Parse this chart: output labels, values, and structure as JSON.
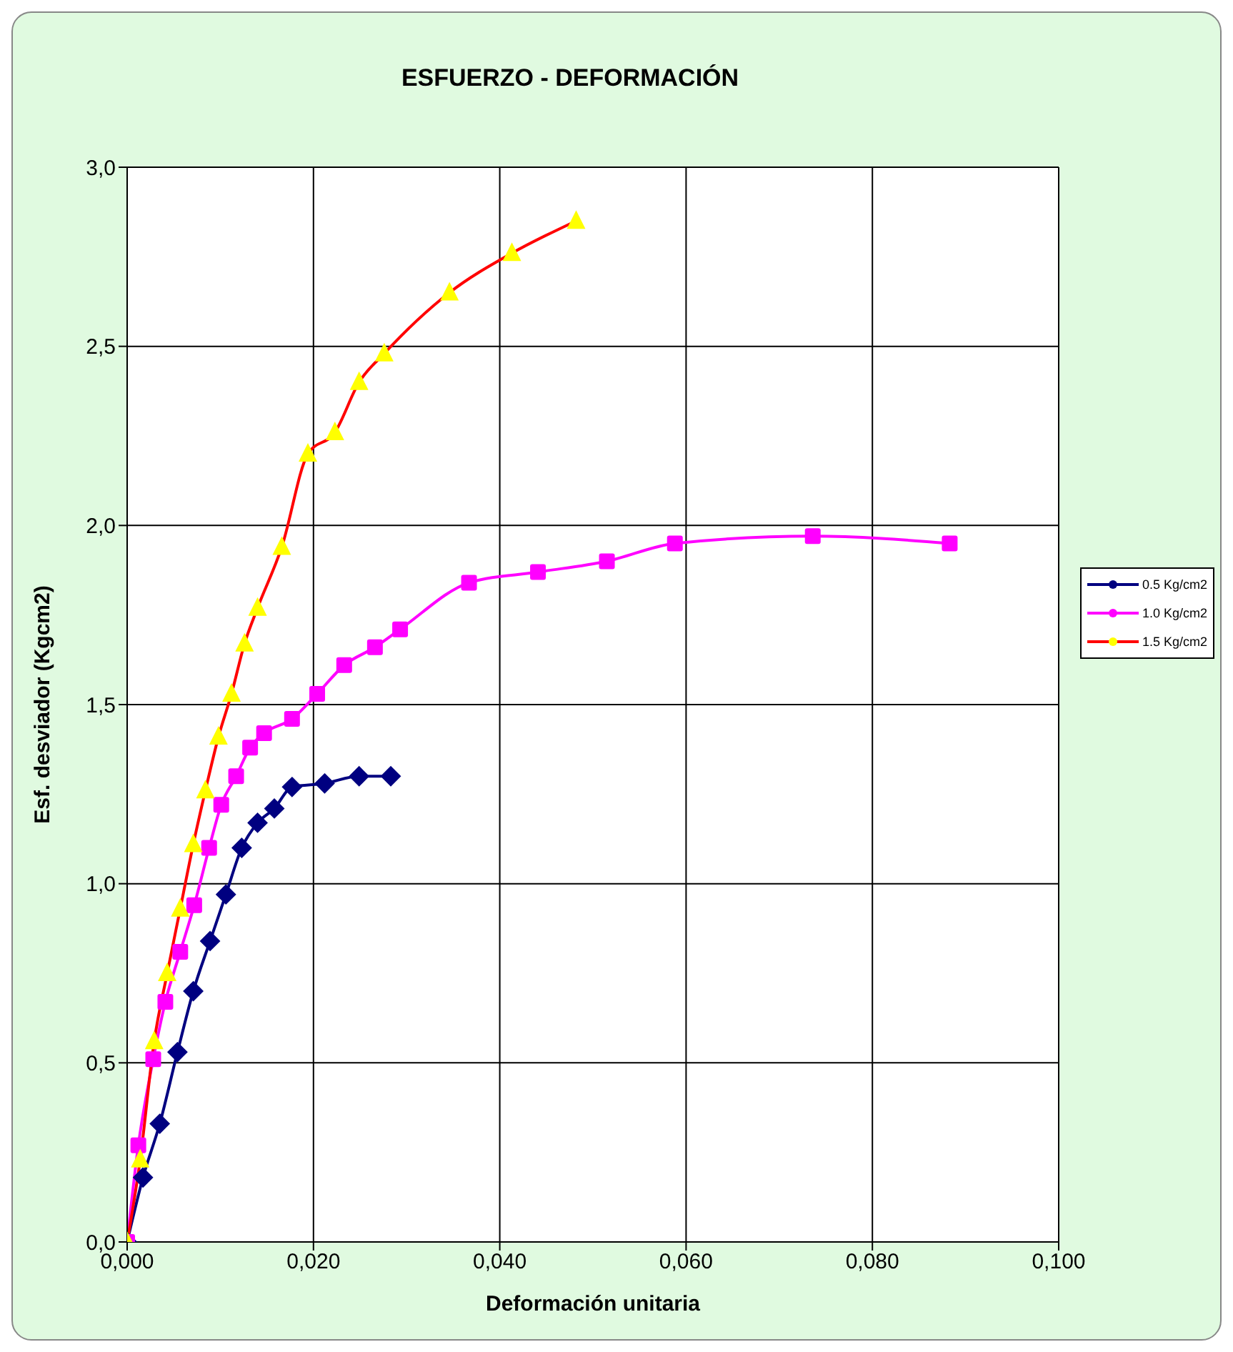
{
  "chart_data": {
    "type": "line",
    "title": "ESFUERZO - DEFORMACIÓN",
    "xlabel": "Deformación unitaria",
    "ylabel": "Esf. desviador (Kgcm2)",
    "xlim": [
      0,
      0.1
    ],
    "xticks": [
      {
        "value": 0,
        "label": "0,000"
      },
      {
        "value": 0.02,
        "label": "0,020"
      },
      {
        "value": 0.04,
        "label": "0,040"
      },
      {
        "value": 0.06,
        "label": "0,060"
      },
      {
        "value": 0.08,
        "label": "0,080"
      },
      {
        "value": 0.1,
        "label": "0,100"
      }
    ],
    "ylim": [
      0,
      3
    ],
    "yticks": [
      {
        "value": 0,
        "label": "0,0"
      },
      {
        "value": 0.5,
        "label": "0,5"
      },
      {
        "value": 1,
        "label": "1,0"
      },
      {
        "value": 1.5,
        "label": "1,5"
      },
      {
        "value": 2,
        "label": "2,0"
      },
      {
        "value": 2.5,
        "label": "2,5"
      },
      {
        "value": 3,
        "label": "3,0"
      }
    ],
    "grid": true,
    "legend": "right",
    "line_style": "solid",
    "series": [
      {
        "name": "0.5 Kg/cm2",
        "color": "#000080",
        "marker": "diamond",
        "x": [
          0,
          0.0017,
          0.0035,
          0.0054,
          0.0071,
          0.0089,
          0.0106,
          0.0123,
          0.014,
          0.0158,
          0.0177,
          0.0212,
          0.0249,
          0.0283
        ],
        "values": [
          0,
          0.18,
          0.33,
          0.53,
          0.7,
          0.84,
          0.97,
          1.1,
          1.17,
          1.21,
          1.27,
          1.28,
          1.3,
          1.3
        ]
      },
      {
        "name": "1.0 Kg/cm2",
        "color": "#ff00ff",
        "marker": "square",
        "x": [
          0,
          0.0012,
          0.0028,
          0.0041,
          0.0057,
          0.0072,
          0.0088,
          0.0101,
          0.0117,
          0.0132,
          0.0147,
          0.0177,
          0.0204,
          0.0233,
          0.0266,
          0.0293,
          0.0367,
          0.0441,
          0.0515,
          0.0588,
          0.0736,
          0.0883
        ],
        "values": [
          0,
          0.27,
          0.51,
          0.67,
          0.81,
          0.94,
          1.1,
          1.22,
          1.3,
          1.38,
          1.42,
          1.46,
          1.53,
          1.61,
          1.66,
          1.71,
          1.84,
          1.87,
          1.9,
          1.95,
          1.97,
          1.95
        ]
      },
      {
        "name": "1.5 Kg/cm2",
        "color": "#ff0000",
        "colors": [
          "#ffff00",
          "#ffff00",
          "#ffff00",
          "#ffff00",
          "#ffff00",
          "#ffff00",
          "#ffff00",
          "#ffff00",
          "#ffff00",
          "#ffff00",
          "#ffff00",
          "#ffff00",
          "#ffff00",
          "#ffff00",
          "#ffff00",
          "#ffff00",
          "#ffff00",
          "#ffff00",
          "#ffff00"
        ],
        "marker": "triangle",
        "x": [
          0,
          0.0014,
          0.0029,
          0.0043,
          0.0057,
          0.0071,
          0.0084,
          0.0098,
          0.0112,
          0.0126,
          0.014,
          0.0166,
          0.0194,
          0.0223,
          0.0249,
          0.0276,
          0.0346,
          0.0413,
          0.0482
        ],
        "values": [
          0,
          0.23,
          0.56,
          0.75,
          0.93,
          1.11,
          1.26,
          1.41,
          1.53,
          1.67,
          1.77,
          1.94,
          2.2,
          2.26,
          2.4,
          2.48,
          2.65,
          2.76,
          2.85
        ]
      }
    ]
  }
}
